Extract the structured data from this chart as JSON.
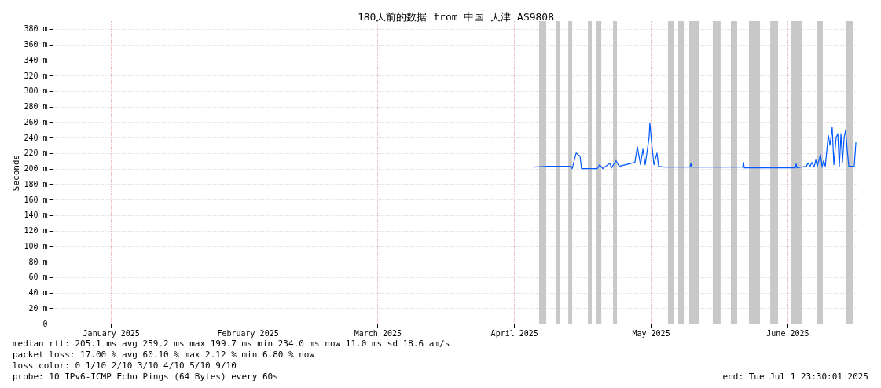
{
  "chart_data": {
    "type": "line",
    "title": "180天前的数据 from 中国 天津 AS9808",
    "ylabel": "Seconds",
    "xlim": [
      "2025-01-02T23:30",
      "2025-07-01T23:30"
    ],
    "xticks": [
      {
        "value": "2025-01-16T00:00",
        "label": "January 2025"
      },
      {
        "value": "2025-02-15T12:00",
        "label": "February 2025"
      },
      {
        "value": "2025-03-16T12:00",
        "label": "March 2025"
      },
      {
        "value": "2025-04-16T00:00",
        "label": "April 2025"
      },
      {
        "value": "2025-05-16T12:00",
        "label": "May 2025"
      },
      {
        "value": "2025-06-16T00:00",
        "label": "June 2025"
      }
    ],
    "ylim": [
      0,
      390
    ],
    "yticks": [
      0,
      {
        "value": 20,
        "label": "20 m"
      },
      {
        "value": 40,
        "label": "40 m"
      },
      {
        "value": 60,
        "label": "60 m"
      },
      {
        "value": 80,
        "label": "80 m"
      },
      {
        "value": 100,
        "label": "100 m"
      },
      {
        "value": 120,
        "label": "120 m"
      },
      {
        "value": 140,
        "label": "140 m"
      },
      {
        "value": 160,
        "label": "160 m"
      },
      {
        "value": 180,
        "label": "180 m"
      },
      {
        "value": 200,
        "label": "200 m"
      },
      {
        "value": 220,
        "label": "220 m"
      },
      {
        "value": 240,
        "label": "240 m"
      },
      {
        "value": 260,
        "label": "260 m"
      },
      {
        "value": 280,
        "label": "280 m"
      },
      {
        "value": 300,
        "label": "300 m"
      },
      {
        "value": 320,
        "label": "320 m"
      },
      {
        "value": 340,
        "label": "340 m"
      },
      {
        "value": 360,
        "label": "360 m"
      },
      {
        "value": 380,
        "label": "380 m"
      }
    ],
    "grid": true,
    "marker": "none",
    "line_style": "solid",
    "x": [
      "2025-04-20T12:00",
      "2025-04-23T12:00",
      "2025-04-28T14:00",
      "2025-04-28T23:00",
      "2025-04-29T20:00",
      "2025-04-30T17:00",
      "2025-05-01T01:00",
      "2025-05-04T13:00",
      "2025-05-05T02:00",
      "2025-05-05T19:00",
      "2025-05-07T09:00",
      "2025-05-07T17:00",
      "2025-05-08T18:00",
      "2025-05-09T11:00",
      "2025-05-11T14:00",
      "2025-05-12T23:00",
      "2025-05-13T12:00",
      "2025-05-14T05:00",
      "2025-05-14T18:00",
      "2025-05-15T06:00",
      "2025-05-16T03:00",
      "2025-05-16T07:00",
      "2025-05-16T16:00",
      "2025-05-17T05:00",
      "2025-05-17T21:00",
      "2025-05-18T06:00",
      "2025-05-19T11:00",
      "2025-05-25T06:00",
      "2025-05-25T11:00",
      "2025-05-25T15:00",
      "2025-06-06T00:00",
      "2025-06-06T05:00",
      "2025-06-06T09:00",
      "2025-06-17T18:00",
      "2025-06-17T23:00",
      "2025-06-18T03:00",
      "2025-06-20T06:00",
      "2025-06-20T14:00",
      "2025-06-21T02:00",
      "2025-06-21T11:00",
      "2025-06-21T23:00",
      "2025-06-22T08:00",
      "2025-06-22T16:00",
      "2025-06-23T09:00",
      "2025-06-23T18:00",
      "2025-06-24T02:00",
      "2025-06-24T11:00",
      "2025-06-25T03:00",
      "2025-06-25T12:00",
      "2025-06-26T00:00",
      "2025-06-26T09:00",
      "2025-06-26T21:00",
      "2025-06-27T06:00",
      "2025-06-27T14:00",
      "2025-06-27T23:00",
      "2025-06-28T07:00",
      "2025-06-28T16:00",
      "2025-06-29T00:00",
      "2025-06-29T08:00",
      "2025-06-29T17:00",
      "2025-06-30T22:00",
      "2025-07-01T07:00"
    ],
    "series": [
      {
        "color": "#0059ff",
        "values": [
          202,
          203,
          203,
          200,
          220,
          216,
          200,
          200,
          205,
          200,
          207,
          201,
          210,
          203,
          206,
          208,
          228,
          205,
          225,
          205,
          240,
          259,
          235,
          205,
          220,
          203,
          202,
          202,
          207,
          202,
          202,
          208,
          201,
          201,
          206,
          201,
          203,
          207,
          203,
          208,
          202,
          211,
          203,
          218,
          202,
          210,
          203,
          243,
          230,
          253,
          205,
          240,
          245,
          202,
          245,
          208,
          240,
          250,
          225,
          203,
          203,
          234
        ]
      }
    ],
    "bands": [
      {
        "axis": "x",
        "from": "2025-04-21T14:00",
        "to": "2025-04-23T04:00",
        "color": "#c8c8c8"
      },
      {
        "axis": "x",
        "from": "2025-04-25T06:00",
        "to": "2025-04-26T07:00",
        "color": "#c8c8c8"
      },
      {
        "axis": "x",
        "from": "2025-04-28T02:00",
        "to": "2025-04-28T23:00",
        "color": "#c8c8c8"
      },
      {
        "axis": "x",
        "from": "2025-05-02T11:00",
        "to": "2025-05-03T08:00",
        "color": "#c8c8c8"
      },
      {
        "axis": "x",
        "from": "2025-05-04T05:00",
        "to": "2025-05-05T11:00",
        "color": "#c8c8c8"
      },
      {
        "axis": "x",
        "from": "2025-05-08T02:00",
        "to": "2025-05-08T23:00",
        "color": "#c8c8c8"
      },
      {
        "axis": "x",
        "from": "2025-05-20T08:00",
        "to": "2025-05-21T14:00",
        "color": "#c8c8c8"
      },
      {
        "axis": "x",
        "from": "2025-05-22T15:00",
        "to": "2025-05-23T21:00",
        "color": "#c8c8c8"
      },
      {
        "axis": "x",
        "from": "2025-05-25T02:00",
        "to": "2025-05-27T09:00",
        "color": "#c8c8c8"
      },
      {
        "axis": "x",
        "from": "2025-05-30T08:00",
        "to": "2025-06-01T02:00",
        "color": "#c8c8c8"
      },
      {
        "axis": "x",
        "from": "2025-06-03T09:00",
        "to": "2025-06-04T19:00",
        "color": "#c8c8c8"
      },
      {
        "axis": "x",
        "from": "2025-06-07T10:00",
        "to": "2025-06-09T21:00",
        "color": "#c8c8c8"
      },
      {
        "axis": "x",
        "from": "2025-06-12T04:00",
        "to": "2025-06-13T22:00",
        "color": "#c8c8c8"
      },
      {
        "axis": "x",
        "from": "2025-06-16T21:00",
        "to": "2025-06-19T04:00",
        "color": "#c8c8c8"
      },
      {
        "axis": "x",
        "from": "2025-06-22T16:00",
        "to": "2025-06-23T22:00",
        "color": "#c8c8c8"
      },
      {
        "axis": "x",
        "from": "2025-06-29T04:00",
        "to": "2025-06-30T14:00",
        "color": "#c8c8c8"
      }
    ],
    "annotations": [
      "median rtt:  205.1 ms avg  259.2 ms max  199.7 ms min  234.0 ms now  11.0 ms sd  18.6   am/s",
      "packet loss: 17.00 % avg  60.10 % max  2.12 % min  6.80 % now",
      "loss color:  0  1/10  2/10  3/10  4/10  5/10  9/10",
      "probe:       10 IPv6-ICMP Echo Pings (64 Bytes) every 60s",
      "end: Tue Jul  1 23:30:01 2025"
    ]
  }
}
